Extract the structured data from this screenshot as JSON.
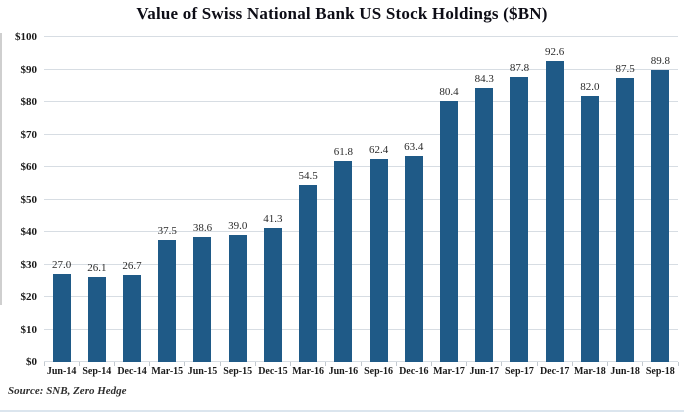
{
  "colors": {
    "bar": "#1f5a87",
    "grid": "#d7dde3",
    "title_text": "#0d0d16",
    "axis_text": "#1a1a1a",
    "value_text": "#2b2b2b",
    "source_text": "#2e2e2e"
  },
  "chart_data": {
    "type": "bar",
    "title": "Value of Swiss National Bank US Stock Holdings ($BN)",
    "source": "Source: SNB, Zero Hedge",
    "categories": [
      "Jun-14",
      "Sep-14",
      "Dec-14",
      "Mar-15",
      "Jun-15",
      "Sep-15",
      "Dec-15",
      "Mar-16",
      "Jun-16",
      "Sep-16",
      "Dec-16",
      "Mar-17",
      "Jun-17",
      "Sep-17",
      "Dec-17",
      "Mar-18",
      "Jun-18",
      "Sep-18"
    ],
    "values": [
      27.0,
      26.1,
      26.7,
      37.5,
      38.6,
      39.0,
      41.3,
      54.5,
      61.8,
      62.4,
      63.4,
      80.4,
      84.3,
      87.8,
      92.6,
      82.0,
      87.5,
      89.8
    ],
    "value_labels": [
      "27.0",
      "26.1",
      "26.7",
      "37.5",
      "38.6",
      "39.0",
      "41.3",
      "54.5",
      "61.8",
      "62.4",
      "63.4",
      "80.4",
      "84.3",
      "87.8",
      "92.6",
      "82.0",
      "87.5",
      "89.8"
    ],
    "xlabel": "",
    "ylabel": "",
    "ylim": [
      0,
      100
    ],
    "ytick_values": [
      0,
      10,
      20,
      30,
      40,
      50,
      60,
      70,
      80,
      90,
      100
    ],
    "ytick_labels": [
      "$0",
      "$10",
      "$20",
      "$30",
      "$40",
      "$50",
      "$60",
      "$70",
      "$80",
      "$90",
      "$100"
    ],
    "grid": "horizontal-major",
    "legend": "none",
    "bar_labels_position": "above"
  }
}
